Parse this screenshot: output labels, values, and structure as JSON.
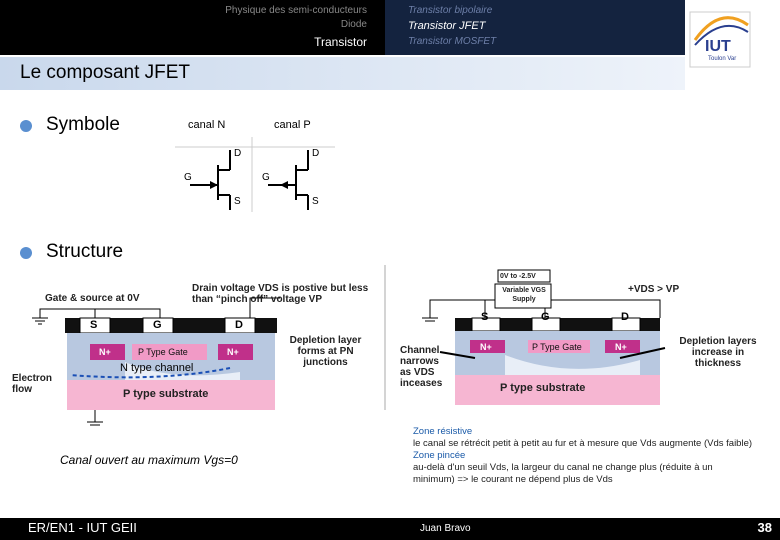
{
  "header": {
    "left_items": [
      "Physique des semi-conducteurs",
      "Diode",
      "Transistor"
    ],
    "right_items": [
      "Transistor bipolaire",
      "Transistor JFET",
      "Transistor MOSFET"
    ],
    "logo": {
      "name": "IUT",
      "place": "Toulon Var"
    }
  },
  "title": "Le composant JFET",
  "bullets": [
    "Symbole",
    "Structure"
  ],
  "symbols": [
    {
      "label": "canal N",
      "drain": "D",
      "gate": "G",
      "source": "S"
    },
    {
      "label": "canal P",
      "drain": "D",
      "gate": "G",
      "source": "S"
    }
  ],
  "structure_left": {
    "bias": "Gate & source at 0V",
    "drain_note": "Drain voltage VDS is postive but less than “pinch off” voltage VP",
    "source": "S",
    "gate": "G",
    "drain": "D",
    "depletion": "Depletion layer forms at PN junctions",
    "n_plus_left": "N+",
    "p_gate": "P Type Gate",
    "n_plus_right": "N+",
    "channel": "N type channel",
    "flow": "Electron flow",
    "substrate": "P type substrate"
  },
  "caption": "Canal ouvert au maximum Vgs=0",
  "structure_right": {
    "supply_range": "0V to -2.5V",
    "supply": "Variable VGS Supply",
    "vds": "+VDS > VP",
    "source": "S",
    "gate": "G",
    "drain": "D",
    "n_plus_left": "N+",
    "p_gate": "P Type Gate",
    "n_plus_right": "N+",
    "narrows": "Channel narrows as VDS inceases",
    "depletion": "Depletion layers increase in thickness",
    "substrate": "P type substrate"
  },
  "notes": [
    {
      "heading": "Zone résistive",
      "text": "le canal se rétrécit petit à petit au fur et à mesure que Vds augmente (Vds faible)"
    },
    {
      "heading": "Zone pincée",
      "text": "au-delà d'un seuil Vds, la largeur du canal ne change plus (réduite à un minimum) =>  le courant ne dépend plus de Vds"
    }
  ],
  "footer": {
    "left": "ER/EN1 - IUT GEII",
    "center": "Juan Bravo",
    "page": "38"
  }
}
